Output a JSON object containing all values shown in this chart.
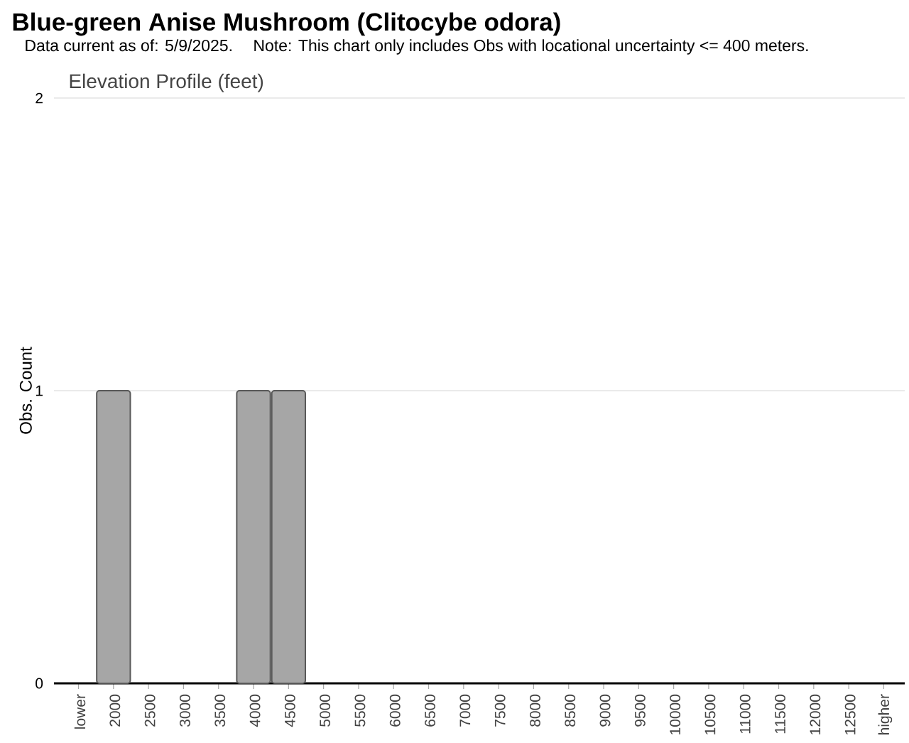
{
  "chart_data": {
    "type": "bar",
    "title": "Blue-green Anise Mushroom (Clitocybe odora)",
    "subtitle": "Data current as of: 5/9/2025.",
    "annotations": [
      "Note: This chart only includes Obs with locational uncertainty <= 400 meters.",
      "Elevation Profile (feet)"
    ],
    "ylabel": "Obs. Count",
    "categories": [
      "lower",
      "2000",
      "2500",
      "3000",
      "3500",
      "4000",
      "4500",
      "5000",
      "5500",
      "6000",
      "6500",
      "7000",
      "7500",
      "8000",
      "8500",
      "9000",
      "9500",
      "10000",
      "10500",
      "11000",
      "11500",
      "12000",
      "12500",
      "higher"
    ],
    "values": [
      0,
      1,
      0,
      0,
      0,
      1,
      1,
      0,
      0,
      0,
      0,
      0,
      0,
      0,
      0,
      0,
      0,
      0,
      0,
      0,
      0,
      0,
      0,
      0
    ],
    "color": "#a6a6a6",
    "ylim": [
      0,
      2
    ],
    "yticks": [
      0,
      1,
      2
    ],
    "grid": "y"
  }
}
